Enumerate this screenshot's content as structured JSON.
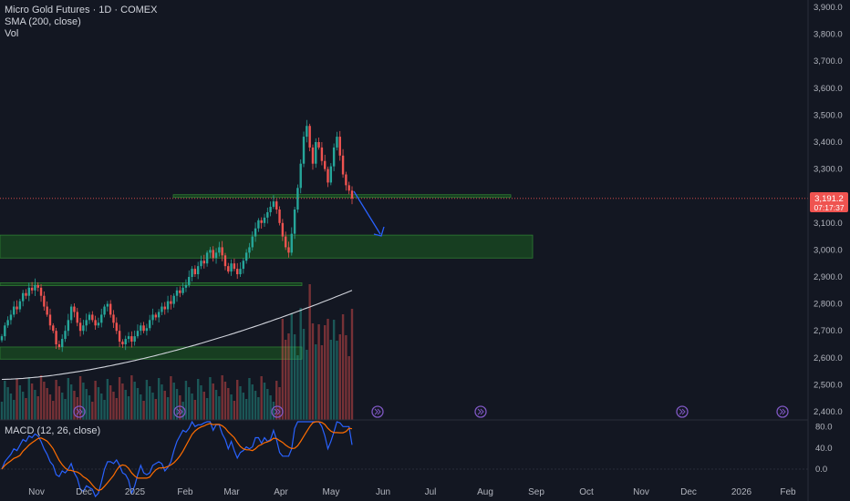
{
  "legend": {
    "symbol": "Micro Gold Futures · 1D · COMEX",
    "sma": "SMA (200, close)",
    "vol": "Vol",
    "macd": "MACD (12, 26, close)"
  },
  "price_badge": {
    "price": "3,191.2",
    "countdown": "07:17:37"
  },
  "colors": {
    "up": "#26a69a",
    "down": "#ef5350",
    "sma": "#d1d4dc",
    "macd": "#2962ff",
    "signal": "#ff6d00",
    "zone": "#1b5e20",
    "arrow": "#2962ff",
    "background": "#131722"
  },
  "chart_data": {
    "type": "candlestick",
    "y_ticks": [
      "3,900.0",
      "3,800.0",
      "3,700.0",
      "3,600.0",
      "3,500.0",
      "3,400.0",
      "3,300.0",
      "3,200.0",
      "3,100.0",
      "3,000.0",
      "2,900.0",
      "2,800.0",
      "2,700.0",
      "2,600.0",
      "2,500.0",
      "2,400.0"
    ],
    "ylim": [
      2380,
      3920
    ],
    "macd_ticks": [
      "80.0",
      "40.0",
      "0.0"
    ],
    "x_labels": [
      "Nov",
      "Dec",
      "2025",
      "Feb",
      "Mar",
      "Apr",
      "May",
      "Jun",
      "Jul",
      "Aug",
      "Sep",
      "Oct",
      "Nov",
      "Dec",
      "2026",
      "Feb"
    ],
    "last_price": 3191.2,
    "zones": [
      {
        "from": 3195,
        "to": 3205
      },
      {
        "from": 2970,
        "to": 3055
      },
      {
        "from": 2870,
        "to": 2878
      },
      {
        "from": 2595,
        "to": 2640
      }
    ],
    "close_series": [
      2680,
      2720,
      2740,
      2760,
      2790,
      2780,
      2810,
      2840,
      2830,
      2860,
      2850,
      2870,
      2860,
      2830,
      2790,
      2760,
      2720,
      2700,
      2650,
      2640,
      2670,
      2700,
      2740,
      2790,
      2770,
      2730,
      2700,
      2720,
      2740,
      2760,
      2740,
      2720,
      2730,
      2760,
      2790,
      2800,
      2760,
      2730,
      2700,
      2660,
      2650,
      2670,
      2680,
      2660,
      2680,
      2700,
      2720,
      2700,
      2710,
      2740,
      2760,
      2750,
      2770,
      2790,
      2780,
      2810,
      2800,
      2830,
      2850,
      2840,
      2860,
      2870,
      2900,
      2930,
      2910,
      2940,
      2960,
      2950,
      2990,
      3000,
      2970,
      2990,
      3010,
      2980,
      2940,
      2920,
      2950,
      2930,
      2910,
      2930,
      2960,
      2990,
      3010,
      3050,
      3080,
      3110,
      3100,
      3120,
      3140,
      3160,
      3180,
      3150,
      3100,
      3050,
      3010,
      2990,
      3060,
      3150,
      3230,
      3320,
      3420,
      3460,
      3380,
      3320,
      3400,
      3380,
      3330,
      3300,
      3250,
      3310,
      3380,
      3420,
      3350,
      3280,
      3240,
      3220,
      3191
    ]
  }
}
